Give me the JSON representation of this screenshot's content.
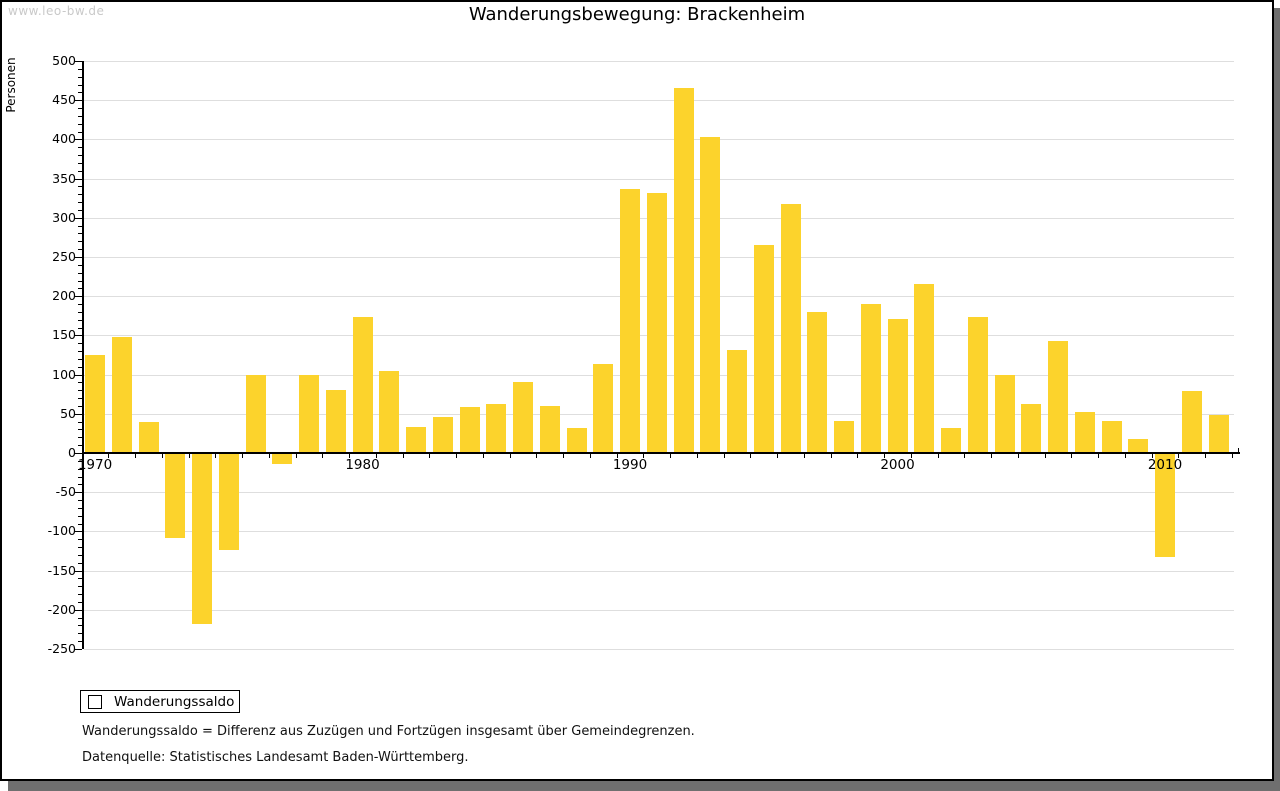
{
  "watermark": "www.leo-bw.de",
  "title": "Wanderungsbewegung: Brackenheim",
  "legend": {
    "label": "Wanderungssaldo"
  },
  "footnotes": [
    "Wanderungssaldo = Differenz aus Zuzügen und Fortzügen insgesamt über Gemeindegrenzen.",
    "Datenquelle: Statistisches Landesamt Baden-Württemberg."
  ],
  "colors": {
    "bar": "#fcd32c",
    "grid": "#dedede",
    "axis": "#000000",
    "watermark": "#c9c9c9",
    "shadow": "#6f6f6f"
  },
  "chart_data": {
    "type": "bar",
    "title": "Wanderungsbewegung: Brackenheim",
    "xlabel": "",
    "ylabel": "Personen",
    "ylim": [
      -250,
      500
    ],
    "y_tick_step": 50,
    "y_minor_tick_step": 10,
    "grid": "horizontal-major",
    "legend_position": "bottom-left",
    "x_labeled_ticks": [
      1970,
      1980,
      1990,
      2000,
      2010
    ],
    "categories": [
      1970,
      1971,
      1972,
      1973,
      1974,
      1975,
      1976,
      1977,
      1978,
      1979,
      1980,
      1981,
      1982,
      1983,
      1984,
      1985,
      1986,
      1987,
      1988,
      1989,
      1990,
      1991,
      1992,
      1993,
      1994,
      1995,
      1996,
      1997,
      1998,
      1999,
      2000,
      2001,
      2002,
      2003,
      2004,
      2005,
      2006,
      2007,
      2008,
      2009,
      2010,
      2011,
      2012
    ],
    "series": [
      {
        "name": "Wanderungssaldo",
        "values": [
          125,
          148,
          39,
          -108,
          -218,
          -124,
          100,
          -14,
          100,
          80,
          174,
          105,
          33,
          46,
          59,
          63,
          90,
          60,
          32,
          113,
          337,
          331,
          466,
          403,
          131,
          265,
          318,
          180,
          41,
          190,
          171,
          215,
          32,
          173,
          100,
          62,
          143,
          52,
          41,
          18,
          -133,
          79,
          48
        ]
      }
    ]
  }
}
